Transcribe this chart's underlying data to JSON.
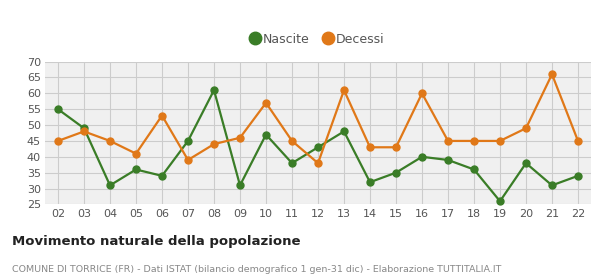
{
  "years": [
    "02",
    "03",
    "04",
    "05",
    "06",
    "07",
    "08",
    "09",
    "10",
    "11",
    "12",
    "13",
    "14",
    "15",
    "16",
    "17",
    "18",
    "19",
    "20",
    "21",
    "22"
  ],
  "nascite": [
    55,
    49,
    31,
    36,
    34,
    45,
    61,
    31,
    47,
    38,
    43,
    48,
    32,
    35,
    40,
    39,
    36,
    26,
    38,
    31,
    34
  ],
  "decessi": [
    45,
    48,
    45,
    41,
    53,
    39,
    44,
    46,
    57,
    45,
    38,
    61,
    43,
    43,
    60,
    45,
    45,
    45,
    49,
    66,
    45
  ],
  "nascite_color": "#3a7d27",
  "decessi_color": "#e07818",
  "nascite_label": "Nascite",
  "decessi_label": "Decessi",
  "ylim": [
    25,
    70
  ],
  "yticks": [
    25,
    30,
    35,
    40,
    45,
    50,
    55,
    60,
    65,
    70
  ],
  "title": "Movimento naturale della popolazione",
  "subtitle": "COMUNE DI TORRICE (FR) - Dati ISTAT (bilancio demografico 1 gen-31 dic) - Elaborazione TUTTITALIA.IT",
  "bg_color": "#ffffff",
  "plot_bg_color": "#f0f0f0",
  "grid_color": "#cccccc",
  "marker_size": 5,
  "line_width": 1.6,
  "tick_fontsize": 8,
  "title_fontsize": 9.5,
  "subtitle_fontsize": 6.8,
  "legend_fontsize": 9
}
